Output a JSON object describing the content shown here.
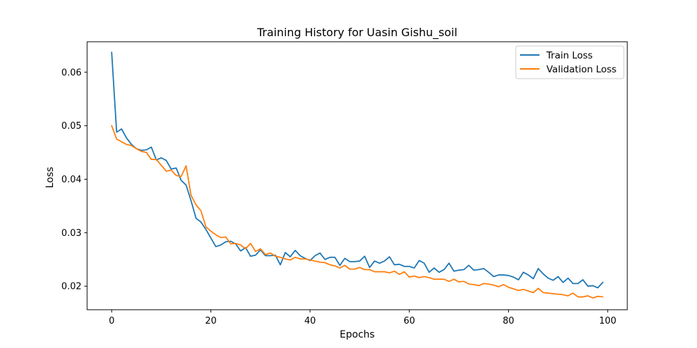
{
  "chart_data": {
    "type": "line",
    "title": "Training History for Uasin Gishu_soil",
    "xlabel": "Epochs",
    "ylabel": "Loss",
    "xlim": [
      -4.95,
      103.95
    ],
    "ylim": [
      0.0156,
      0.0657
    ],
    "xticks": [
      0,
      20,
      40,
      60,
      80,
      100
    ],
    "yticks": [
      0.02,
      0.03,
      0.04,
      0.05,
      0.06
    ],
    "ytick_labels": [
      "0.02",
      "0.03",
      "0.04",
      "0.05",
      "0.06"
    ],
    "legend_position": "upper right",
    "grid": false,
    "series": [
      {
        "name": "Train Loss",
        "color": "#1f77b4",
        "values": [
          0.0637,
          0.0488,
          0.0494,
          0.0477,
          0.0465,
          0.0457,
          0.0454,
          0.0455,
          0.046,
          0.0436,
          0.044,
          0.0435,
          0.0419,
          0.0421,
          0.0398,
          0.0389,
          0.036,
          0.0327,
          0.032,
          0.0306,
          0.029,
          0.0274,
          0.0277,
          0.0283,
          0.0284,
          0.0279,
          0.0266,
          0.0272,
          0.0256,
          0.0258,
          0.0268,
          0.0257,
          0.0257,
          0.0258,
          0.024,
          0.0263,
          0.0255,
          0.0267,
          0.0257,
          0.0252,
          0.0248,
          0.0257,
          0.0262,
          0.025,
          0.0254,
          0.0254,
          0.0239,
          0.0252,
          0.0246,
          0.0246,
          0.0247,
          0.0256,
          0.0235,
          0.0247,
          0.0243,
          0.0247,
          0.0255,
          0.024,
          0.0241,
          0.0237,
          0.0237,
          0.0234,
          0.0248,
          0.0243,
          0.0226,
          0.0234,
          0.0226,
          0.0231,
          0.0243,
          0.0228,
          0.023,
          0.0231,
          0.0239,
          0.023,
          0.0231,
          0.0233,
          0.0226,
          0.0218,
          0.0221,
          0.0221,
          0.022,
          0.0217,
          0.0212,
          0.0226,
          0.0221,
          0.0214,
          0.0233,
          0.0223,
          0.0215,
          0.0211,
          0.0218,
          0.0207,
          0.0215,
          0.0205,
          0.0205,
          0.0212,
          0.02,
          0.0201,
          0.0197,
          0.0207
        ]
      },
      {
        "name": "Validation Loss",
        "color": "#ff7f0e",
        "values": [
          0.05,
          0.0475,
          0.047,
          0.0465,
          0.0463,
          0.0457,
          0.0452,
          0.045,
          0.0437,
          0.0437,
          0.0426,
          0.0415,
          0.0417,
          0.0407,
          0.0405,
          0.0425,
          0.037,
          0.0352,
          0.0341,
          0.0311,
          0.0303,
          0.0296,
          0.0291,
          0.0292,
          0.0279,
          0.028,
          0.0277,
          0.027,
          0.028,
          0.0265,
          0.027,
          0.0259,
          0.0262,
          0.0256,
          0.0254,
          0.0251,
          0.0249,
          0.0254,
          0.0251,
          0.0251,
          0.0249,
          0.0247,
          0.0245,
          0.0244,
          0.024,
          0.0238,
          0.0234,
          0.0239,
          0.0232,
          0.0232,
          0.0235,
          0.0231,
          0.0231,
          0.0227,
          0.0227,
          0.0227,
          0.0225,
          0.0228,
          0.0222,
          0.0227,
          0.0217,
          0.0219,
          0.0216,
          0.0218,
          0.0216,
          0.0213,
          0.0213,
          0.0213,
          0.0209,
          0.0213,
          0.0208,
          0.0209,
          0.0204,
          0.0203,
          0.0201,
          0.0205,
          0.0204,
          0.0202,
          0.0199,
          0.0203,
          0.0198,
          0.0195,
          0.0192,
          0.0194,
          0.0191,
          0.0188,
          0.0196,
          0.0188,
          0.0187,
          0.0186,
          0.0185,
          0.0184,
          0.0182,
          0.0187,
          0.018,
          0.018,
          0.0182,
          0.0178,
          0.0181,
          0.018
        ]
      }
    ]
  }
}
